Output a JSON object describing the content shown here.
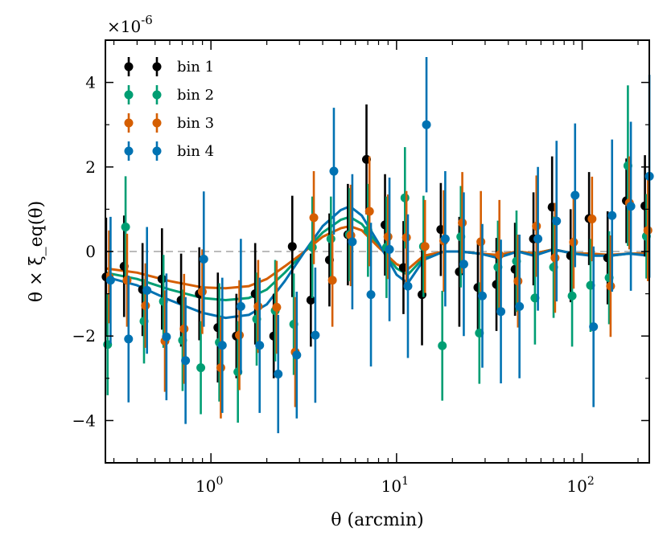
{
  "chart_data": {
    "type": "scatter",
    "title": "",
    "xlabel": "θ (arcmin)",
    "ylabel": "θ × ξ_eq(θ)",
    "x_scale": "log",
    "xlim": [
      0.27,
      230
    ],
    "ylim": [
      -5e-06,
      5e-06
    ],
    "y_multiplier_label": "×10^-6",
    "x_ticks": [
      1,
      10,
      100
    ],
    "x_tick_labels": [
      "10^0",
      "10^1",
      "10^2"
    ],
    "y_ticks": [
      -4,
      -2,
      0,
      2,
      4
    ],
    "y_tick_labels": [
      "−4",
      "−2",
      "0",
      "2",
      "4"
    ],
    "zero_line": true,
    "legend_position": "top-left",
    "series": [
      {
        "name": "bin 1",
        "color": "#000000",
        "x": [
          0.28,
          0.35,
          0.44,
          0.56,
          0.71,
          0.89,
          1.12,
          1.41,
          1.78,
          2.24,
          2.82,
          3.55,
          4.47,
          5.62,
          7.08,
          8.91,
          11.2,
          14.1,
          17.8,
          22.4,
          28.2,
          35.5,
          44.7,
          56.2,
          70.8,
          89.1,
          112,
          141,
          178,
          224
        ],
        "y": [
          -0.6,
          -0.35,
          -0.9,
          -0.65,
          -1.15,
          -1.0,
          -1.8,
          -2.0,
          -1.0,
          -2.0,
          0.12,
          -1.15,
          -0.2,
          0.4,
          2.18,
          0.63,
          -0.38,
          -1.02,
          0.52,
          -0.48,
          -0.85,
          -0.78,
          -0.42,
          0.3,
          1.05,
          -0.1,
          0.78,
          -0.15,
          1.2,
          1.08
        ],
        "err": [
          1.4,
          1.2,
          1.1,
          1.2,
          1.1,
          1.1,
          1.3,
          1.0,
          1.2,
          1.0,
          1.2,
          1.1,
          1.1,
          1.2,
          1.3,
          1.2,
          1.1,
          1.2,
          1.1,
          1.3,
          1.1,
          1.1,
          1.1,
          1.1,
          1.2,
          1.1,
          1.1,
          1.1,
          1.0,
          1.2
        ]
      },
      {
        "name": "bin 2",
        "color": "#009E73",
        "x": [
          0.28,
          0.35,
          0.44,
          0.56,
          0.71,
          0.89,
          1.12,
          1.41,
          1.78,
          2.24,
          2.82,
          3.55,
          4.47,
          5.62,
          7.08,
          8.91,
          11.2,
          14.1,
          17.8,
          22.4,
          28.2,
          35.5,
          44.7,
          56.2,
          70.8,
          89.1,
          112,
          141,
          178,
          224
        ],
        "y": [
          -2.2,
          0.58,
          -1.65,
          -1.18,
          -2.1,
          -2.75,
          -2.15,
          -2.85,
          -1.6,
          -1.4,
          -1.72,
          0.1,
          0.3,
          0.4,
          0.5,
          0.1,
          1.27,
          0.12,
          -2.23,
          0.35,
          -1.93,
          -0.37,
          -0.23,
          -1.1,
          -0.37,
          -1.05,
          -0.8,
          -0.62,
          2.03,
          0.36
        ],
        "err": [
          1.2,
          1.2,
          1.0,
          1.1,
          1.2,
          1.1,
          1.4,
          1.2,
          1.1,
          1.2,
          1.2,
          1.2,
          1.0,
          1.1,
          1.1,
          1.2,
          1.2,
          1.2,
          1.3,
          1.2,
          1.2,
          1.1,
          1.2,
          1.1,
          1.2,
          1.2,
          1.1,
          1.1,
          1.9,
          1.0
        ]
      },
      {
        "name": "bin 3",
        "color": "#D55E00",
        "x": [
          0.28,
          0.35,
          0.44,
          0.56,
          0.71,
          0.89,
          1.12,
          1.41,
          1.78,
          2.24,
          2.82,
          3.55,
          4.47,
          5.62,
          7.08,
          8.91,
          11.2,
          14.1,
          17.8,
          22.4,
          28.2,
          35.5,
          44.7,
          56.2,
          70.8,
          89.1,
          112,
          141,
          178,
          224
        ],
        "y": [
          -0.6,
          -0.68,
          -1.28,
          -2.12,
          -1.83,
          -0.95,
          -2.75,
          -1.98,
          -1.3,
          -1.32,
          -2.38,
          0.8,
          -0.68,
          0.38,
          0.95,
          0.35,
          0.33,
          0.12,
          0.25,
          0.68,
          0.23,
          -0.08,
          -0.7,
          0.6,
          -0.15,
          0.22,
          0.77,
          -0.82,
          1.15,
          0.5
        ],
        "err": [
          1.1,
          1.1,
          1.0,
          1.2,
          1.3,
          1.0,
          1.2,
          1.3,
          1.1,
          1.1,
          1.3,
          1.1,
          1.1,
          1.2,
          1.3,
          1.0,
          1.1,
          1.1,
          1.2,
          1.2,
          1.2,
          1.3,
          1.1,
          1.2,
          1.3,
          1.1,
          1.0,
          1.2,
          1.1,
          1.2
        ]
      },
      {
        "name": "bin 4",
        "color": "#0072B2",
        "x": [
          0.28,
          0.35,
          0.44,
          0.56,
          0.71,
          0.89,
          1.12,
          1.41,
          1.78,
          2.24,
          2.82,
          3.55,
          4.47,
          5.62,
          7.08,
          8.91,
          11.2,
          14.1,
          17.8,
          22.4,
          28.2,
          35.5,
          44.7,
          56.2,
          70.8,
          89.1,
          112,
          141,
          178,
          224
        ],
        "y": [
          -0.68,
          -2.07,
          -0.92,
          -2.02,
          -2.58,
          -0.18,
          -2.22,
          -1.3,
          -2.22,
          -2.9,
          -2.45,
          -1.98,
          1.9,
          0.23,
          -1.02,
          0.05,
          -0.82,
          3.0,
          0.3,
          -0.3,
          -1.05,
          -1.42,
          -1.3,
          0.3,
          0.72,
          1.33,
          -1.78,
          0.85,
          1.07,
          1.78
        ],
        "err": [
          1.5,
          1.5,
          1.5,
          1.5,
          1.5,
          1.6,
          1.6,
          1.6,
          1.6,
          1.4,
          1.5,
          1.6,
          1.5,
          1.6,
          1.7,
          1.7,
          1.7,
          1.6,
          1.6,
          1.7,
          1.7,
          1.7,
          1.7,
          1.7,
          1.9,
          1.7,
          1.9,
          1.8,
          2.0,
          2.4
        ]
      }
    ],
    "model_curves": [
      {
        "name": "bin 2 model",
        "color": "#009E73",
        "x": [
          0.27,
          0.4,
          0.6,
          0.9,
          1.2,
          1.6,
          2.0,
          2.5,
          3.2,
          4.0,
          5.0,
          5.6,
          6.5,
          8.0,
          10,
          11.5,
          14,
          18,
          22,
          28,
          35,
          45,
          55,
          70,
          90,
          112,
          141,
          178,
          230
        ],
        "y": [
          -0.5,
          -0.65,
          -0.9,
          -1.1,
          -1.15,
          -1.1,
          -0.9,
          -0.5,
          0.0,
          0.45,
          0.75,
          0.82,
          0.65,
          0.15,
          -0.4,
          -0.55,
          -0.15,
          0.0,
          0.0,
          -0.05,
          -0.1,
          0.0,
          -0.05,
          0.05,
          -0.05,
          -0.05,
          -0.1,
          -0.05,
          -0.05
        ]
      },
      {
        "name": "bin 3 model",
        "color": "#D55E00",
        "x": [
          0.27,
          0.4,
          0.6,
          0.9,
          1.2,
          1.6,
          2.0,
          2.5,
          3.2,
          4.0,
          5.0,
          5.6,
          6.5,
          8.0,
          10,
          11.5,
          14,
          18,
          22,
          28,
          35,
          45,
          55,
          70,
          90,
          112,
          141,
          178,
          230
        ],
        "y": [
          -0.4,
          -0.5,
          -0.7,
          -0.85,
          -0.87,
          -0.82,
          -0.65,
          -0.35,
          0.0,
          0.35,
          0.55,
          0.6,
          0.5,
          0.1,
          -0.3,
          -0.42,
          -0.1,
          0.0,
          0.0,
          -0.05,
          -0.08,
          0.0,
          -0.05,
          0.05,
          -0.05,
          -0.05,
          -0.08,
          -0.05,
          -0.05
        ]
      },
      {
        "name": "bin 4 model",
        "color": "#0072B2",
        "x": [
          0.27,
          0.4,
          0.6,
          0.9,
          1.2,
          1.6,
          2.0,
          2.5,
          3.2,
          4.0,
          5.0,
          5.6,
          6.5,
          8.0,
          10,
          11.5,
          14,
          18,
          22,
          28,
          35,
          45,
          55,
          70,
          90,
          112,
          141,
          178,
          230
        ],
        "y": [
          -0.6,
          -0.8,
          -1.15,
          -1.45,
          -1.57,
          -1.5,
          -1.25,
          -0.7,
          0.0,
          0.6,
          0.98,
          1.07,
          0.85,
          0.2,
          -0.55,
          -0.75,
          -0.2,
          0.0,
          0.0,
          -0.05,
          -0.15,
          0.0,
          -0.1,
          0.05,
          -0.05,
          -0.1,
          -0.1,
          -0.05,
          -0.1
        ]
      }
    ]
  }
}
